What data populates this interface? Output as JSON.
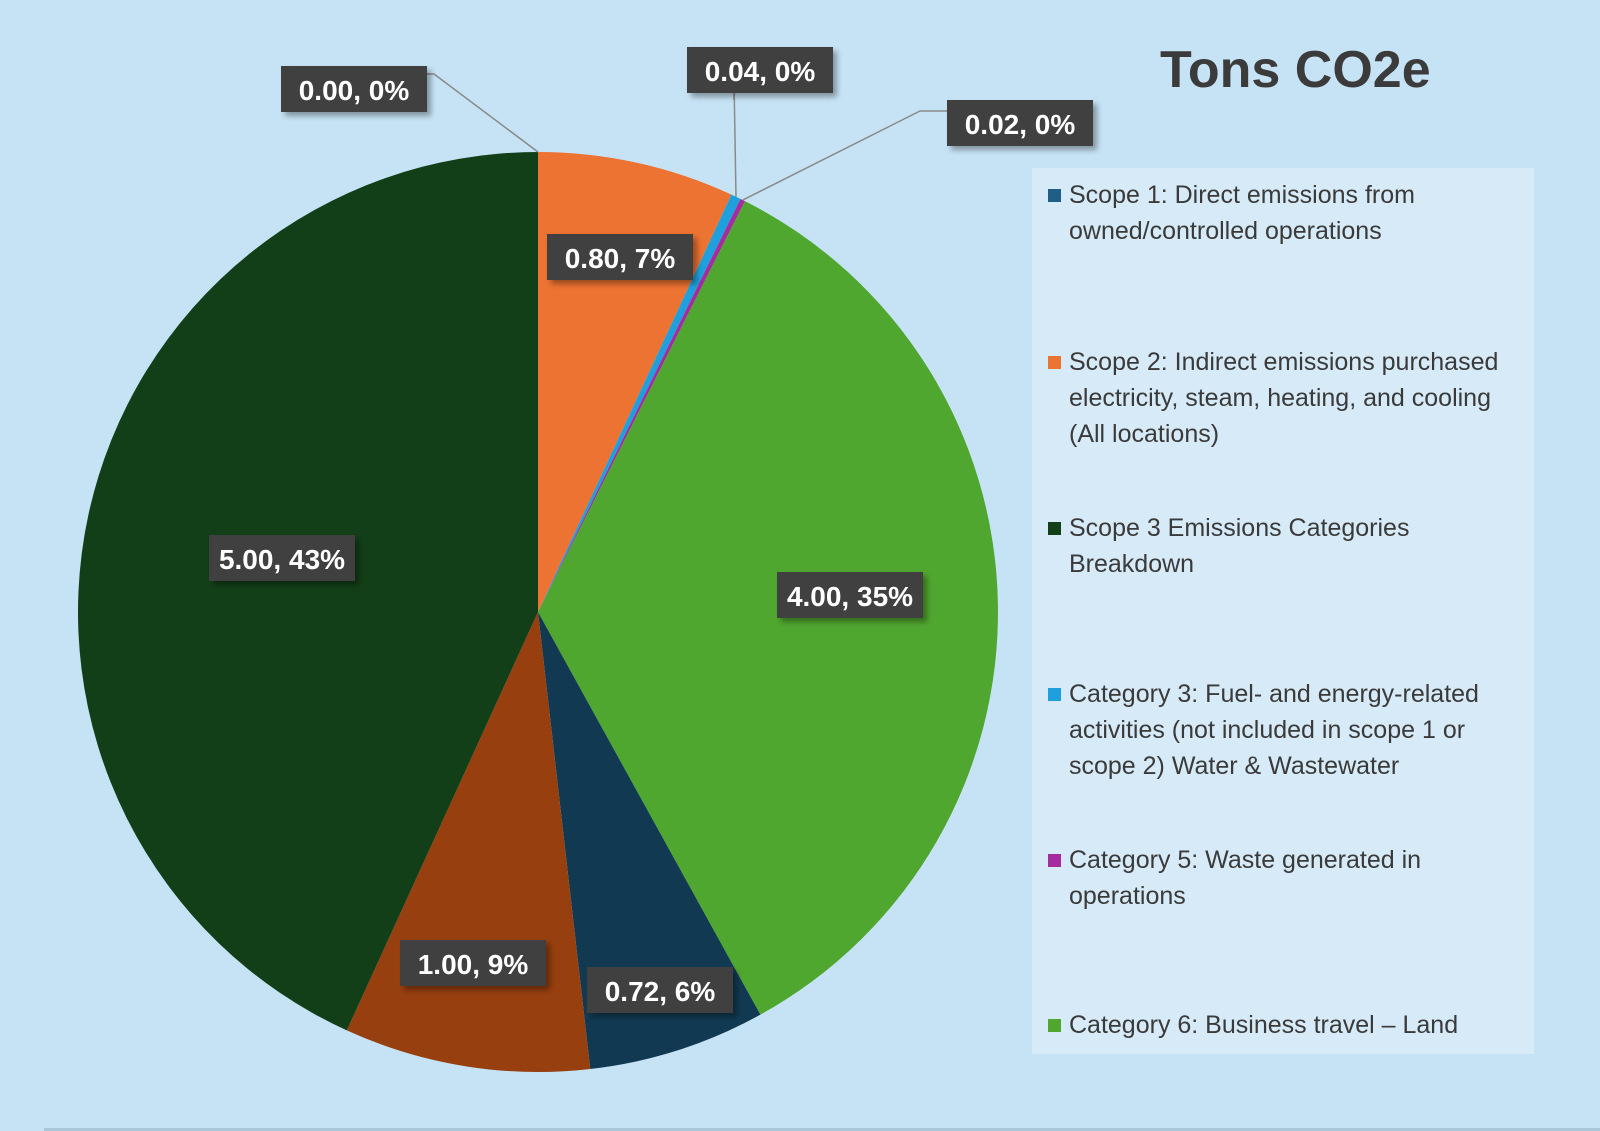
{
  "chart_data": {
    "type": "pie",
    "title": "Tons CO2e",
    "series": [
      {
        "values": [
          {
            "label": "Scope 1: Direct emissions from owned/controlled operations",
            "value": 0.0,
            "data_label": "0.00, 0%",
            "color": "#1f5f85"
          },
          {
            "label": "Scope 2: Indirect emissions purchased electricity, steam, heating, and cooling (All locations)",
            "value": 0.8,
            "data_label": "0.80, 7%",
            "color": "#ed7332"
          },
          {
            "label": "Category 3: Fuel- and energy-related activities (not included in scope 1 or scope 2) Water & Wastewater",
            "value": 0.04,
            "data_label": "0.04, 0%",
            "color": "#1fa0dc"
          },
          {
            "label": "Category 5: Waste generated in operations",
            "value": 0.02,
            "data_label": "0.02, 0%",
            "color": "#a52b9e"
          },
          {
            "label": "Category 6: Business travel – Land",
            "value": 4.0,
            "data_label": "4.00, 35%",
            "color": "#50a72f"
          },
          {
            "label": "",
            "value": 0.72,
            "data_label": "0.72, 6%",
            "color": "#113a52"
          },
          {
            "label": "",
            "value": 1.0,
            "data_label": "1.00, 9%",
            "color": "#973f0f"
          },
          {
            "label": "Scope 3 Emissions Categories Breakdown",
            "value": 5.0,
            "data_label": "5.00, 43%",
            "color": "#123f17"
          }
        ]
      }
    ],
    "legend": {
      "placement": "right",
      "items": [
        {
          "label": "Scope 1: Direct emissions from owned/controlled operations",
          "color": "#1f5f85"
        },
        {
          "label": "Scope 2: Indirect emissions purchased electricity, steam, heating, and cooling (All locations)",
          "color": "#ed7332"
        },
        {
          "label": "Scope 3 Emissions Categories Breakdown",
          "color": "#123f17"
        },
        {
          "label": "Category 3: Fuel- and energy-related activities (not included in scope 1 or scope 2) Water & Wastewater",
          "color": "#1fa0dc"
        },
        {
          "label": "Category 5: Waste generated in operations",
          "color": "#a52b9e"
        },
        {
          "label": "Category 6: Business travel – Land",
          "color": "#50a72f"
        }
      ]
    }
  }
}
